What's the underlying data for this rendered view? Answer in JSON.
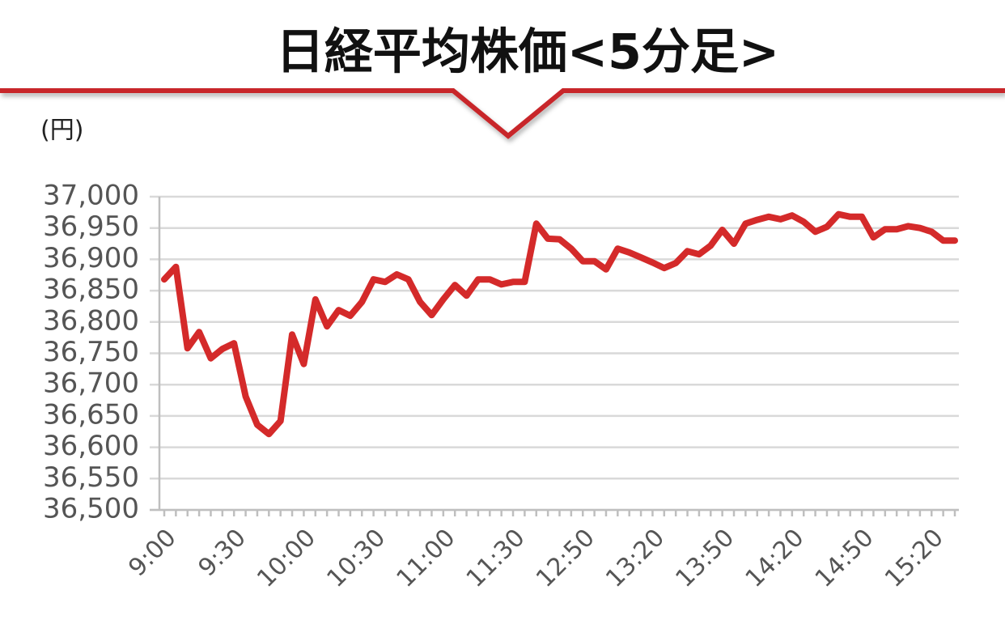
{
  "chart_data": {
    "type": "line",
    "title": "日経平均株価<5分足>",
    "y_label": "(円)",
    "categories": [
      "9:00",
      null,
      null,
      null,
      null,
      null,
      "9:30",
      null,
      null,
      null,
      null,
      null,
      "10:00",
      null,
      null,
      null,
      null,
      null,
      "10:30",
      null,
      null,
      null,
      null,
      null,
      "11:00",
      null,
      null,
      null,
      null,
      null,
      "11:30",
      null,
      null,
      null,
      null,
      null,
      "12:50",
      null,
      null,
      null,
      null,
      null,
      "13:20",
      null,
      null,
      null,
      null,
      null,
      "13:50",
      null,
      null,
      null,
      null,
      null,
      "14:20",
      null,
      null,
      null,
      null,
      null,
      "14:50",
      null,
      null,
      null,
      null,
      null,
      "15:20",
      null,
      null
    ],
    "values": [
      36868,
      36888,
      36758,
      36784,
      36742,
      36757,
      36766,
      36681,
      36636,
      36621,
      36642,
      36780,
      36733,
      36836,
      36793,
      36819,
      36810,
      36832,
      36868,
      36864,
      36876,
      36868,
      36832,
      36811,
      36836,
      36859,
      36842,
      36868,
      36868,
      36860,
      36864,
      36864,
      36957,
      36933,
      36932,
      36917,
      36897,
      36897,
      36884,
      36917,
      36911,
      36903,
      36895,
      36886,
      36894,
      36913,
      36908,
      36922,
      36947,
      36925,
      36957,
      36963,
      36968,
      36964,
      36970,
      36960,
      36944,
      36952,
      36972,
      36968,
      36968,
      36935,
      36948,
      36948,
      36953,
      36950,
      36944,
      36930,
      36930
    ],
    "color": "#d42a2a",
    "ylim": [
      36500,
      37000
    ],
    "yticks": [
      {
        "value": 36500,
        "label": "36,500"
      },
      {
        "value": 36550,
        "label": "36,550"
      },
      {
        "value": 36600,
        "label": "36,600"
      },
      {
        "value": 36650,
        "label": "36,650"
      },
      {
        "value": 36700,
        "label": "36,700"
      },
      {
        "value": 36750,
        "label": "36,750"
      },
      {
        "value": 36800,
        "label": "36,800"
      },
      {
        "value": 36850,
        "label": "36,850"
      },
      {
        "value": 36900,
        "label": "36,900"
      },
      {
        "value": 36950,
        "label": "36,950"
      },
      {
        "value": 37000,
        "label": "37,000"
      }
    ],
    "grid": true
  }
}
